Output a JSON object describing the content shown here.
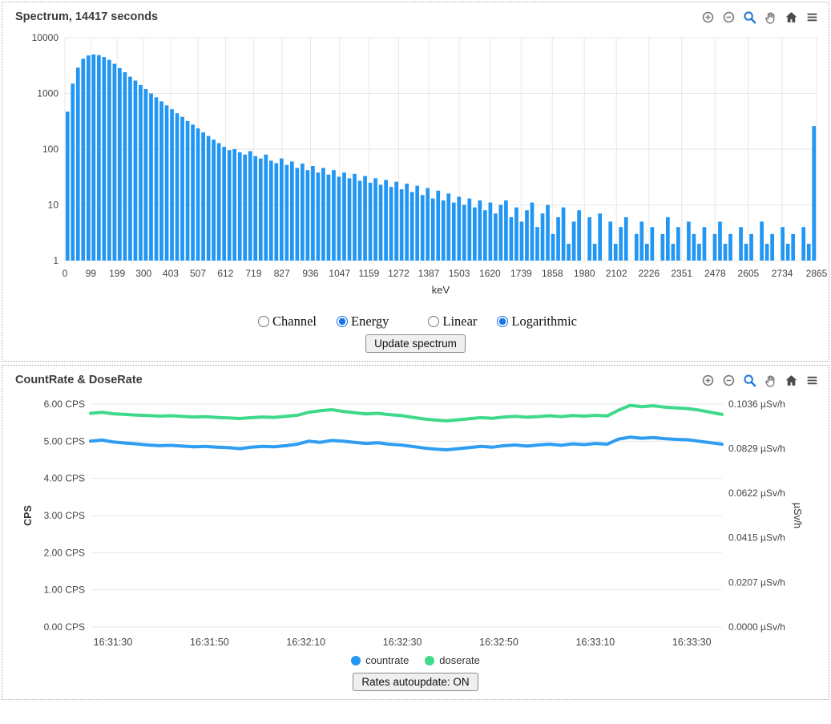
{
  "spectrum_panel": {
    "title": "Spectrum, 14417 seconds",
    "toolbar_icons": [
      "zoom-in",
      "zoom-out",
      "box-zoom",
      "pan",
      "home",
      "menu"
    ],
    "controls": {
      "x_mode": {
        "name": "xmode",
        "options": [
          "Channel",
          "Energy"
        ],
        "selected": "Energy"
      },
      "y_mode": {
        "name": "ymode",
        "options": [
          "Linear",
          "Logarithmic"
        ],
        "selected": "Logarithmic"
      },
      "update_button": "Update spectrum"
    }
  },
  "rates_panel": {
    "title": "CountRate & DoseRate",
    "toolbar_icons": [
      "zoom-in",
      "zoom-out",
      "box-zoom",
      "pan",
      "home",
      "menu"
    ],
    "legend": [
      {
        "label": "countrate",
        "color": "#2196f3"
      },
      {
        "label": "doserate",
        "color": "#3fd98b"
      }
    ],
    "autoupdate_button": "Rates autoupdate: ON"
  },
  "colors": {
    "bar_blue": "#2196f3",
    "line_blue": "#2e9df2",
    "line_green": "#3fd98b",
    "grid": "#e7e7e7",
    "tick_text": "#444444",
    "active_icon": "#1f78d4"
  },
  "chart_data": [
    {
      "type": "bar",
      "title": "Spectrum, 14417 seconds",
      "xlabel": "keV",
      "ylabel": "",
      "y_scale": "log",
      "x_range": [
        0,
        2865
      ],
      "y_range": [
        1,
        10000
      ],
      "x_ticks": [
        0,
        99,
        199,
        300,
        403,
        507,
        612,
        719,
        827,
        936,
        1047,
        1159,
        1272,
        1387,
        1503,
        1620,
        1739,
        1858,
        1980,
        2102,
        2226,
        2351,
        2478,
        2605,
        2734,
        2865
      ],
      "y_ticks": [
        1,
        10,
        100,
        1000,
        10000
      ],
      "bar_color": "#2196f3",
      "values": [
        470,
        1500,
        2900,
        4200,
        4800,
        5000,
        4850,
        4500,
        4000,
        3400,
        2850,
        2400,
        2000,
        1700,
        1420,
        1200,
        1000,
        850,
        720,
        610,
        520,
        440,
        380,
        320,
        275,
        235,
        200,
        172,
        148,
        128,
        110,
        96,
        100,
        88,
        80,
        92,
        75,
        68,
        80,
        62,
        56,
        68,
        52,
        60,
        46,
        55,
        42,
        50,
        38,
        46,
        35,
        42,
        32,
        38,
        30,
        36,
        27,
        33,
        25,
        30,
        23,
        28,
        21,
        26,
        19,
        24,
        17,
        22,
        15,
        20,
        13,
        18,
        12,
        16,
        11,
        14,
        10,
        13,
        9,
        12,
        8,
        11,
        7,
        10,
        12,
        6,
        9,
        5,
        8,
        11,
        4,
        7,
        10,
        3,
        6,
        9,
        2,
        5,
        8,
        0,
        6,
        2,
        7,
        0,
        5,
        2,
        4,
        6,
        0,
        3,
        5,
        2,
        4,
        0,
        3,
        6,
        2,
        4,
        0,
        5,
        3,
        2,
        4,
        0,
        3,
        5,
        2,
        3,
        0,
        4,
        2,
        3,
        0,
        5,
        2,
        3,
        0,
        4,
        2,
        3,
        0,
        4,
        2,
        260
      ]
    },
    {
      "type": "line",
      "title": "CountRate & DoseRate",
      "x_ticks": [
        "16:31:30",
        "16:31:50",
        "16:32:10",
        "16:32:30",
        "16:32:50",
        "16:33:10",
        "16:33:30"
      ],
      "left_axis": {
        "label": "CPS",
        "range": [
          0,
          6
        ],
        "tick_values": [
          0,
          1,
          2,
          3,
          4,
          5,
          6
        ],
        "tick_labels": [
          "0.00 CPS",
          "1.00 CPS",
          "2.00 CPS",
          "3.00 CPS",
          "4.00 CPS",
          "5.00 CPS",
          "6.00 CPS"
        ]
      },
      "right_axis": {
        "label": "µSv/h",
        "range": [
          0,
          0.1036
        ],
        "tick_values": [
          0,
          0.0207,
          0.0415,
          0.0622,
          0.0829,
          0.1036
        ],
        "tick_labels": [
          "0.0000 µSv/h",
          "0.0207 µSv/h",
          "0.0415 µSv/h",
          "0.0622 µSv/h",
          "0.0829 µSv/h",
          "0.1036 µSv/h"
        ]
      },
      "series": [
        {
          "name": "countrate",
          "axis": "left",
          "color": "#2e9df2",
          "values": [
            5.0,
            5.03,
            4.98,
            4.95,
            4.93,
            4.9,
            4.88,
            4.89,
            4.87,
            4.85,
            4.86,
            4.84,
            4.83,
            4.8,
            4.84,
            4.86,
            4.85,
            4.88,
            4.92,
            5.0,
            4.97,
            5.02,
            5.0,
            4.97,
            4.94,
            4.96,
            4.92,
            4.9,
            4.86,
            4.82,
            4.79,
            4.77,
            4.8,
            4.83,
            4.86,
            4.84,
            4.88,
            4.9,
            4.87,
            4.9,
            4.92,
            4.89,
            4.93,
            4.91,
            4.94,
            4.92,
            5.06,
            5.11,
            5.08,
            5.1,
            5.07,
            5.05,
            5.04,
            5.0,
            4.96,
            4.92
          ]
        },
        {
          "name": "doserate",
          "axis": "right",
          "color": "#3fd98b",
          "values": [
            0.0993,
            0.0998,
            0.0991,
            0.0988,
            0.0985,
            0.0983,
            0.098,
            0.0982,
            0.0979,
            0.0976,
            0.0978,
            0.0974,
            0.0972,
            0.0969,
            0.0973,
            0.0976,
            0.0974,
            0.0979,
            0.0984,
            0.0998,
            0.1005,
            0.101,
            0.1002,
            0.0996,
            0.099,
            0.0993,
            0.0987,
            0.0983,
            0.0975,
            0.0967,
            0.0962,
            0.0958,
            0.0963,
            0.0968,
            0.0973,
            0.097,
            0.0976,
            0.0979,
            0.0975,
            0.0978,
            0.0982,
            0.0978,
            0.0983,
            0.098,
            0.0984,
            0.0981,
            0.1008,
            0.103,
            0.1024,
            0.1028,
            0.1022,
            0.1018,
            0.1015,
            0.1008,
            0.0998,
            0.0988
          ]
        }
      ]
    }
  ]
}
